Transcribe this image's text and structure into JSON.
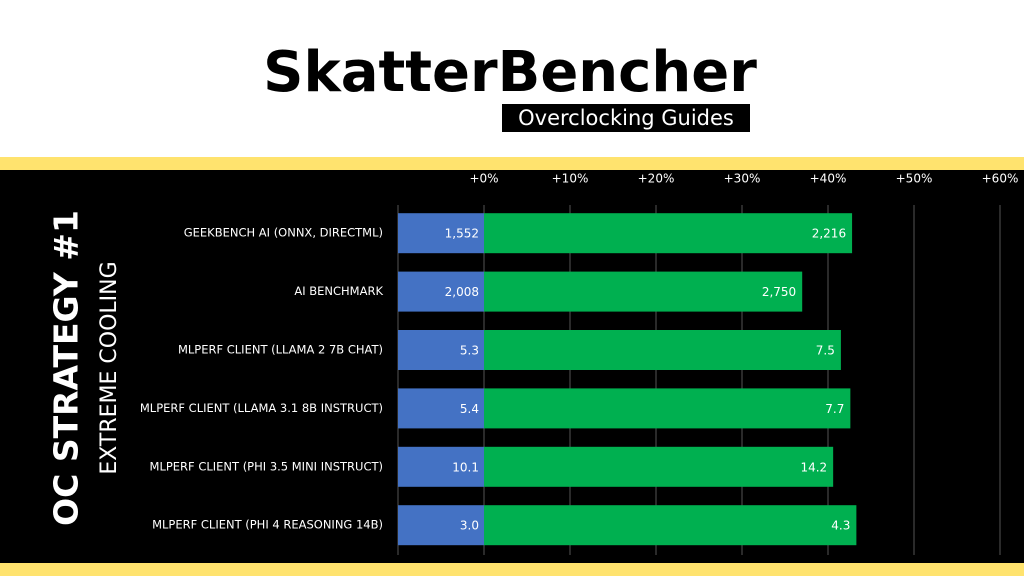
{
  "header": {
    "title": "SkatterBencher",
    "subtitle": "Overclocking Guides"
  },
  "side": {
    "title": "OC STRATEGY #1",
    "subtitle": "EXTREME COOLING"
  },
  "chart_data": {
    "type": "bar",
    "categories": [
      "GEEKBENCH AI (ONNX, DIRECTML)",
      "AI BENCHMARK",
      "MLPERF CLIENT (LLAMA 2 7B CHAT)",
      "MLPERF CLIENT (LLAMA 3.1 8B INSTRUCT)",
      "MLPERF CLIENT (PHI 3.5 MINI INSTRUCT)",
      "MLPERF CLIENT (PHI 4 REASONING 14B)"
    ],
    "series": [
      {
        "color": "#4472c4",
        "values": [
          1552,
          2008,
          5.3,
          5.4,
          10.1,
          3.0
        ],
        "value_labels": [
          "1,552",
          "2,008",
          "5.3",
          "5.4",
          "10.1",
          "3.0"
        ]
      },
      {
        "color": "#00b050",
        "values": [
          2216,
          2750,
          7.5,
          7.7,
          14.2,
          4.3
        ],
        "value_labels": [
          "2,216",
          "2,750",
          "7.5",
          "7.7",
          "14.2",
          "4.3"
        ]
      }
    ],
    "gains": [
      42.8,
      37.0,
      41.5,
      42.6,
      40.6,
      43.3
    ],
    "xlim": [
      -10,
      60
    ],
    "xticks": [
      {
        "value": 0,
        "label": "+0%"
      },
      {
        "value": 10,
        "label": "+10%"
      },
      {
        "value": 20,
        "label": "+20%"
      },
      {
        "value": 30,
        "label": "+30%"
      },
      {
        "value": 40,
        "label": "+40%"
      },
      {
        "value": 50,
        "label": "+50%"
      },
      {
        "value": 60,
        "label": "+60%"
      }
    ],
    "grid": true
  }
}
